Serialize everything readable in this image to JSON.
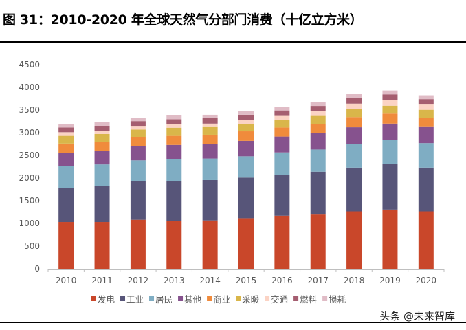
{
  "title": "图 31：2010-2020 年全球天然气分部门消费（十亿立方米）",
  "watermark": "头条 @未来智库",
  "chart_data": {
    "type": "bar",
    "stacked": true,
    "title": "图 31：2010-2020 年全球天然气分部门消费（十亿立方米）",
    "xlabel": "",
    "ylabel": "",
    "ylim": [
      0,
      4500
    ],
    "yticks": [
      0,
      500,
      1000,
      1500,
      2000,
      2500,
      3000,
      3500,
      4000,
      4500
    ],
    "grid": false,
    "legend": "bottom",
    "categories": [
      "2010",
      "2011",
      "2012",
      "2013",
      "2014",
      "2015",
      "2016",
      "2017",
      "2018",
      "2019",
      "2020"
    ],
    "series": [
      {
        "name": "发电",
        "color": "#C9472A",
        "values": [
          1030,
          1030,
          1080,
          1060,
          1065,
          1115,
          1170,
          1195,
          1265,
          1305,
          1265
        ]
      },
      {
        "name": "工业",
        "color": "#575579",
        "values": [
          745,
          800,
          850,
          870,
          890,
          895,
          905,
          945,
          965,
          1000,
          965
        ]
      },
      {
        "name": "居民",
        "color": "#7FADC3",
        "values": [
          485,
          470,
          460,
          485,
          475,
          470,
          490,
          490,
          525,
          530,
          540
        ]
      },
      {
        "name": "其他",
        "color": "#86528E",
        "values": [
          300,
          300,
          320,
          315,
          320,
          340,
          350,
          365,
          365,
          365,
          355
        ]
      },
      {
        "name": "商业",
        "color": "#F08B3C",
        "values": [
          200,
          200,
          185,
          200,
          205,
          210,
          200,
          200,
          225,
          220,
          195
        ]
      },
      {
        "name": "采暖",
        "color": "#D9B64A",
        "values": [
          170,
          170,
          175,
          180,
          170,
          155,
          170,
          175,
          180,
          175,
          185
        ]
      },
      {
        "name": "交通",
        "color": "#FBD3C4",
        "values": [
          80,
          75,
          65,
          80,
          75,
          95,
          85,
          105,
          115,
          120,
          115
        ]
      },
      {
        "name": "燃料",
        "color": "#A55E70",
        "values": [
          105,
          105,
          120,
          105,
          120,
          115,
          120,
          115,
          120,
          130,
          120
        ]
      },
      {
        "name": "损耗",
        "color": "#E0BCC6",
        "values": [
          80,
          85,
          75,
          85,
          75,
          75,
          80,
          90,
          95,
          85,
          85
        ]
      }
    ]
  }
}
